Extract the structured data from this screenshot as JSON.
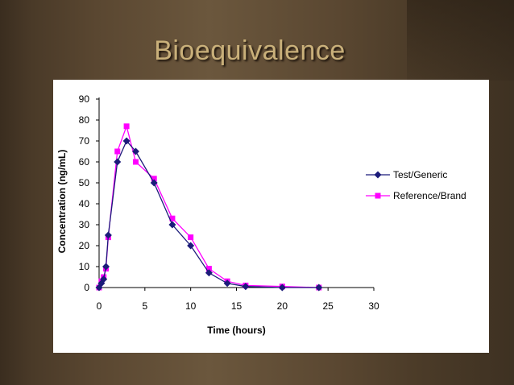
{
  "slide": {
    "title": "Bioequivalence"
  },
  "chart_data": {
    "type": "line",
    "title": "",
    "xlabel": "Time (hours)",
    "ylabel": "Concentration (ng/mL)",
    "xlim": [
      0,
      30
    ],
    "ylim": [
      0,
      90
    ],
    "xticks": [
      0,
      5,
      10,
      15,
      20,
      25,
      30
    ],
    "yticks": [
      0,
      10,
      20,
      30,
      40,
      50,
      60,
      70,
      80,
      90
    ],
    "grid": false,
    "legend_position": "right",
    "series": [
      {
        "name": "Test/Generic",
        "color": "#1b1b7a",
        "marker": "diamond",
        "points": [
          [
            0,
            0
          ],
          [
            0.25,
            2
          ],
          [
            0.5,
            4
          ],
          [
            0.75,
            10
          ],
          [
            1,
            25
          ],
          [
            2,
            60
          ],
          [
            3,
            70
          ],
          [
            4,
            65
          ],
          [
            6,
            50
          ],
          [
            8,
            30
          ],
          [
            10,
            20
          ],
          [
            12,
            7
          ],
          [
            14,
            2
          ],
          [
            16,
            0.5
          ],
          [
            20,
            0
          ],
          [
            24,
            0
          ]
        ]
      },
      {
        "name": "Reference/Brand",
        "color": "#ff00ff",
        "marker": "square",
        "points": [
          [
            0,
            0
          ],
          [
            0.25,
            3
          ],
          [
            0.5,
            5
          ],
          [
            0.75,
            9
          ],
          [
            1,
            24
          ],
          [
            2,
            65
          ],
          [
            3,
            77
          ],
          [
            4,
            60
          ],
          [
            6,
            52
          ],
          [
            8,
            33
          ],
          [
            10,
            24
          ],
          [
            12,
            9
          ],
          [
            14,
            3
          ],
          [
            16,
            1
          ],
          [
            20,
            0.5
          ],
          [
            24,
            0
          ]
        ]
      }
    ]
  }
}
